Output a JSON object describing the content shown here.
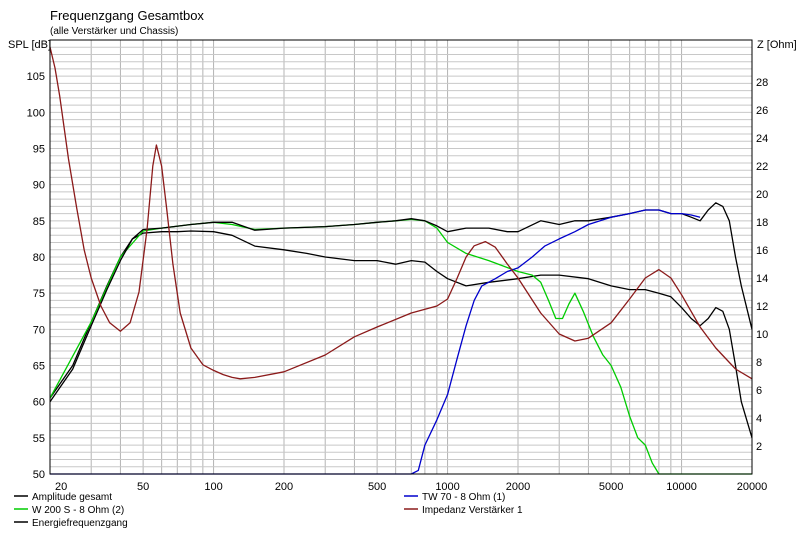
{
  "chart_data": {
    "type": "line",
    "title": "Frequenzgang Gesamtbox",
    "subtitle": "(alle Verstärker und Chassis)",
    "ylabel": "SPL [dB]",
    "y2label": "Z [Ohm]",
    "xlabel": "",
    "x_scale": "log",
    "xlim": [
      20,
      20000
    ],
    "ylim": [
      50,
      110
    ],
    "y2lim": [
      0,
      31
    ],
    "grid": true,
    "legend_position": "bottom",
    "x_ticks": [
      {
        "value": 20,
        "label": "20"
      },
      {
        "value": 50,
        "label": "50"
      },
      {
        "value": 100,
        "label": "100"
      },
      {
        "value": 200,
        "label": "200"
      },
      {
        "value": 500,
        "label": "500"
      },
      {
        "value": 1000,
        "label": "1000"
      },
      {
        "value": 2000,
        "label": "2000"
      },
      {
        "value": 5000,
        "label": "5000"
      },
      {
        "value": 10000,
        "label": "10000"
      },
      {
        "value": 20000,
        "label": "20000"
      }
    ],
    "y_ticks": [
      55,
      60,
      65,
      70,
      75,
      80,
      85,
      90,
      95,
      100,
      105
    ],
    "y_tick_labels": [
      "55",
      "60",
      "65",
      "70",
      "75",
      "80",
      "85",
      "90",
      "95",
      "100",
      "105"
    ],
    "y2_ticks": [
      2,
      4,
      6,
      8,
      10,
      12,
      14,
      16,
      18,
      20,
      22,
      24,
      26,
      28
    ],
    "y2_tick_labels": [
      "2",
      "4",
      "6",
      "8",
      "10",
      "12",
      "14",
      "16",
      "18",
      "20",
      "22",
      "24",
      "26",
      "28"
    ],
    "y_bottom_label": "50",
    "series": [
      {
        "name": "Amplitude gesamt",
        "color": "#000000",
        "axis": "left",
        "points": [
          [
            20,
            60.5
          ],
          [
            25,
            65
          ],
          [
            30,
            71
          ],
          [
            35,
            76
          ],
          [
            40,
            80
          ],
          [
            45,
            82.5
          ],
          [
            50,
            83.3
          ],
          [
            60,
            83.5
          ],
          [
            70,
            83.5
          ],
          [
            80,
            83.6
          ],
          [
            100,
            83.5
          ],
          [
            120,
            83
          ],
          [
            150,
            81.5
          ],
          [
            200,
            81
          ],
          [
            250,
            80.5
          ],
          [
            300,
            80
          ],
          [
            400,
            79.5
          ],
          [
            500,
            79.5
          ],
          [
            600,
            79
          ],
          [
            700,
            79.5
          ],
          [
            800,
            79.3
          ],
          [
            900,
            78
          ],
          [
            1000,
            77
          ],
          [
            1200,
            76
          ],
          [
            1500,
            76.5
          ],
          [
            2000,
            77
          ],
          [
            2500,
            77.5
          ],
          [
            3000,
            77.5
          ],
          [
            4000,
            77
          ],
          [
            5000,
            76
          ],
          [
            6000,
            75.5
          ],
          [
            7000,
            75.5
          ],
          [
            8000,
            75
          ],
          [
            9000,
            74.5
          ],
          [
            10000,
            73
          ],
          [
            11000,
            71.5
          ],
          [
            12000,
            70.5
          ],
          [
            13000,
            71.5
          ],
          [
            14000,
            73
          ],
          [
            15000,
            72.5
          ],
          [
            16000,
            70
          ],
          [
            17000,
            65
          ],
          [
            18000,
            60
          ],
          [
            20000,
            55
          ]
        ]
      },
      {
        "name": "W 200 S - 8 Ohm (2)",
        "color": "#00cc00",
        "axis": "left",
        "points": [
          [
            20,
            60.5
          ],
          [
            30,
            71
          ],
          [
            40,
            80
          ],
          [
            50,
            83.6
          ],
          [
            60,
            84
          ],
          [
            80,
            84.5
          ],
          [
            100,
            84.8
          ],
          [
            120,
            84.5
          ],
          [
            150,
            83.8
          ],
          [
            200,
            84
          ],
          [
            300,
            84.2
          ],
          [
            400,
            84.5
          ],
          [
            500,
            84.8
          ],
          [
            600,
            85
          ],
          [
            700,
            85.2
          ],
          [
            800,
            85
          ],
          [
            900,
            84
          ],
          [
            1000,
            82
          ],
          [
            1200,
            80.5
          ],
          [
            1500,
            79.5
          ],
          [
            2000,
            78
          ],
          [
            2300,
            77.5
          ],
          [
            2500,
            76.5
          ],
          [
            2700,
            74
          ],
          [
            2900,
            71.5
          ],
          [
            3100,
            71.5
          ],
          [
            3300,
            73.5
          ],
          [
            3500,
            75
          ],
          [
            3800,
            72.5
          ],
          [
            4200,
            69
          ],
          [
            4600,
            66.5
          ],
          [
            5000,
            65
          ],
          [
            5500,
            62
          ],
          [
            6000,
            58
          ],
          [
            6500,
            55
          ],
          [
            7000,
            54
          ],
          [
            7500,
            51.5
          ],
          [
            8000,
            50
          ],
          [
            20000,
            50
          ]
        ]
      },
      {
        "name": "Energiefrequenzgang",
        "color": "#000000",
        "axis": "left",
        "points": [
          [
            20,
            60
          ],
          [
            25,
            64.5
          ],
          [
            30,
            70.5
          ],
          [
            35,
            75.5
          ],
          [
            40,
            79.5
          ],
          [
            45,
            82.5
          ],
          [
            50,
            83.8
          ],
          [
            60,
            84
          ],
          [
            80,
            84.5
          ],
          [
            100,
            84.8
          ],
          [
            120,
            84.8
          ],
          [
            150,
            83.7
          ],
          [
            200,
            84
          ],
          [
            300,
            84.2
          ],
          [
            400,
            84.5
          ],
          [
            500,
            84.8
          ],
          [
            600,
            85
          ],
          [
            700,
            85.3
          ],
          [
            800,
            85
          ],
          [
            900,
            84.3
          ],
          [
            1000,
            83.5
          ],
          [
            1200,
            84
          ],
          [
            1500,
            84
          ],
          [
            1800,
            83.5
          ],
          [
            2000,
            83.5
          ],
          [
            2500,
            85
          ],
          [
            3000,
            84.5
          ],
          [
            3500,
            85
          ],
          [
            4000,
            85
          ],
          [
            5000,
            85.5
          ],
          [
            6000,
            86
          ],
          [
            7000,
            86.5
          ],
          [
            8000,
            86.5
          ],
          [
            9000,
            86
          ],
          [
            10000,
            86
          ],
          [
            11000,
            85.5
          ],
          [
            12000,
            85
          ],
          [
            13000,
            86.5
          ],
          [
            14000,
            87.5
          ],
          [
            15000,
            87
          ],
          [
            16000,
            85
          ],
          [
            17000,
            80
          ],
          [
            18000,
            76
          ],
          [
            20000,
            70
          ]
        ]
      },
      {
        "name": "TW 70 - 8 Ohm (1)",
        "color": "#0000cc",
        "axis": "left",
        "points": [
          [
            20,
            50
          ],
          [
            700,
            50
          ],
          [
            750,
            50.5
          ],
          [
            800,
            54
          ],
          [
            900,
            57.5
          ],
          [
            1000,
            61
          ],
          [
            1100,
            66
          ],
          [
            1200,
            70.5
          ],
          [
            1300,
            74
          ],
          [
            1400,
            76
          ],
          [
            1600,
            77
          ],
          [
            1800,
            78
          ],
          [
            2000,
            78.5
          ],
          [
            2300,
            80
          ],
          [
            2600,
            81.5
          ],
          [
            3000,
            82.5
          ],
          [
            3500,
            83.5
          ],
          [
            4000,
            84.5
          ],
          [
            5000,
            85.5
          ],
          [
            6000,
            86
          ],
          [
            7000,
            86.5
          ],
          [
            8000,
            86.5
          ],
          [
            9000,
            86
          ],
          [
            10000,
            86
          ],
          [
            11000,
            85.8
          ],
          [
            12000,
            85.5
          ]
        ]
      },
      {
        "name": "Impedanz Verstärker 1",
        "color": "#8b1a1a",
        "axis": "right",
        "points": [
          [
            20,
            30.5
          ],
          [
            21,
            29
          ],
          [
            22,
            27
          ],
          [
            24,
            22.5
          ],
          [
            26,
            19
          ],
          [
            28,
            16
          ],
          [
            30,
            14
          ],
          [
            33,
            12
          ],
          [
            36,
            10.8
          ],
          [
            40,
            10.2
          ],
          [
            44,
            10.8
          ],
          [
            48,
            13
          ],
          [
            52,
            17.5
          ],
          [
            55,
            22
          ],
          [
            57,
            23.5
          ],
          [
            60,
            22
          ],
          [
            63,
            19
          ],
          [
            67,
            15
          ],
          [
            72,
            11.5
          ],
          [
            80,
            9
          ],
          [
            90,
            7.8
          ],
          [
            100,
            7.4
          ],
          [
            110,
            7.1
          ],
          [
            120,
            6.9
          ],
          [
            130,
            6.8
          ],
          [
            150,
            6.9
          ],
          [
            200,
            7.3
          ],
          [
            300,
            8.5
          ],
          [
            400,
            9.8
          ],
          [
            500,
            10.5
          ],
          [
            700,
            11.5
          ],
          [
            900,
            12
          ],
          [
            1000,
            12.5
          ],
          [
            1100,
            14
          ],
          [
            1200,
            15.5
          ],
          [
            1300,
            16.3
          ],
          [
            1450,
            16.6
          ],
          [
            1600,
            16.2
          ],
          [
            1800,
            15
          ],
          [
            2000,
            14
          ],
          [
            2500,
            11.5
          ],
          [
            3000,
            10
          ],
          [
            3500,
            9.5
          ],
          [
            4000,
            9.7
          ],
          [
            5000,
            10.8
          ],
          [
            6000,
            12.5
          ],
          [
            7000,
            14
          ],
          [
            8000,
            14.6
          ],
          [
            9000,
            14
          ],
          [
            10000,
            12.8
          ],
          [
            12000,
            10.5
          ],
          [
            14000,
            9
          ],
          [
            17000,
            7.5
          ],
          [
            20000,
            6.8
          ]
        ]
      }
    ]
  }
}
